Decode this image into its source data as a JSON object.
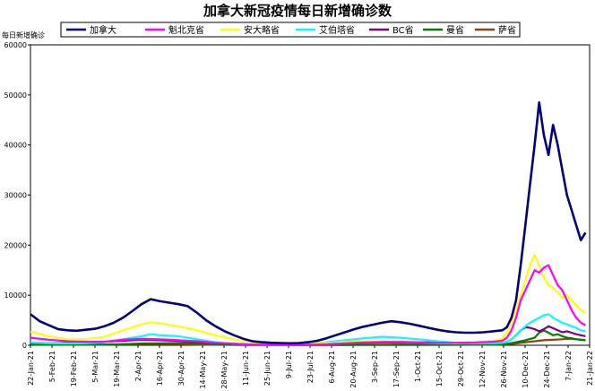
{
  "chart_data": {
    "type": "line",
    "title": "加拿大新冠疫情每日新增确诊数",
    "xlabel": "",
    "ylabel": "每日新增确诊",
    "ylim": [
      0,
      60000
    ],
    "y_ticks": [
      "0",
      "10000",
      "20000",
      "30000",
      "40000",
      "50000",
      "60000"
    ],
    "x_ticks": [
      "22-Jan-21",
      "5-Feb-21",
      "19-Feb-21",
      "5-Mar-21",
      "19-Mar-21",
      "2-Apr-21",
      "16-Apr-21",
      "30-Apr-21",
      "14-May-21",
      "28-May-21",
      "11-Jun-21",
      "25-Jun-21",
      "9-Jul-21",
      "23-Jul-21",
      "6-Aug-21",
      "20-Aug-21",
      "3-Sep-21",
      "17-Sep-21",
      "1-Oct-21",
      "15-Oct-21",
      "29-Oct-21",
      "12-Nov-21",
      "26-Nov-21",
      "10-Dec-21",
      "24-Dec-21",
      "7-Jan-22",
      "21-Jan-22"
    ],
    "grid": false,
    "legend_position": "top",
    "series": [
      {
        "name": "加拿大",
        "color": "#000080",
        "points": [
          [
            0,
            6200
          ],
          [
            4,
            4800
          ],
          [
            8,
            4000
          ],
          [
            12,
            3200
          ],
          [
            16,
            3000
          ],
          [
            20,
            2900
          ],
          [
            24,
            3100
          ],
          [
            28,
            3300
          ],
          [
            32,
            3800
          ],
          [
            36,
            4500
          ],
          [
            40,
            5500
          ],
          [
            44,
            6800
          ],
          [
            48,
            8200
          ],
          [
            52,
            9200
          ],
          [
            56,
            8800
          ],
          [
            60,
            8500
          ],
          [
            64,
            8200
          ],
          [
            68,
            7800
          ],
          [
            72,
            6500
          ],
          [
            76,
            5000
          ],
          [
            80,
            3800
          ],
          [
            84,
            2800
          ],
          [
            88,
            2000
          ],
          [
            92,
            1300
          ],
          [
            96,
            800
          ],
          [
            100,
            600
          ],
          [
            104,
            500
          ],
          [
            108,
            450
          ],
          [
            112,
            400
          ],
          [
            116,
            450
          ],
          [
            120,
            600
          ],
          [
            124,
            900
          ],
          [
            128,
            1400
          ],
          [
            132,
            2000
          ],
          [
            136,
            2600
          ],
          [
            140,
            3200
          ],
          [
            144,
            3700
          ],
          [
            148,
            4100
          ],
          [
            152,
            4500
          ],
          [
            156,
            4800
          ],
          [
            160,
            4600
          ],
          [
            164,
            4300
          ],
          [
            168,
            3900
          ],
          [
            172,
            3500
          ],
          [
            176,
            3100
          ],
          [
            180,
            2800
          ],
          [
            184,
            2600
          ],
          [
            188,
            2500
          ],
          [
            192,
            2500
          ],
          [
            196,
            2600
          ],
          [
            200,
            2800
          ],
          [
            204,
            3000
          ],
          [
            206,
            3600
          ],
          [
            208,
            5500
          ],
          [
            210,
            9000
          ],
          [
            212,
            16000
          ],
          [
            214,
            24000
          ],
          [
            216,
            32000
          ],
          [
            218,
            40000
          ],
          [
            220,
            48500
          ],
          [
            222,
            42000
          ],
          [
            224,
            38000
          ],
          [
            226,
            44000
          ],
          [
            228,
            40000
          ],
          [
            230,
            35000
          ],
          [
            232,
            30000
          ],
          [
            234,
            27000
          ],
          [
            236,
            24000
          ],
          [
            238,
            21000
          ],
          [
            240,
            22500
          ]
        ]
      },
      {
        "name": "魁北克省",
        "color": "#ff00ff",
        "points": [
          [
            0,
            1500
          ],
          [
            8,
            1100
          ],
          [
            16,
            800
          ],
          [
            24,
            700
          ],
          [
            32,
            700
          ],
          [
            40,
            1100
          ],
          [
            48,
            1300
          ],
          [
            56,
            1200
          ],
          [
            64,
            1000
          ],
          [
            72,
            800
          ],
          [
            80,
            500
          ],
          [
            88,
            300
          ],
          [
            96,
            150
          ],
          [
            104,
            100
          ],
          [
            112,
            80
          ],
          [
            120,
            100
          ],
          [
            128,
            200
          ],
          [
            136,
            400
          ],
          [
            144,
            550
          ],
          [
            152,
            650
          ],
          [
            160,
            650
          ],
          [
            168,
            550
          ],
          [
            176,
            500
          ],
          [
            184,
            500
          ],
          [
            192,
            550
          ],
          [
            200,
            700
          ],
          [
            204,
            900
          ],
          [
            206,
            1500
          ],
          [
            208,
            3000
          ],
          [
            210,
            5500
          ],
          [
            212,
            9000
          ],
          [
            214,
            11000
          ],
          [
            216,
            13000
          ],
          [
            218,
            15000
          ],
          [
            220,
            14500
          ],
          [
            222,
            15500
          ],
          [
            224,
            16000
          ],
          [
            226,
            14000
          ],
          [
            228,
            12000
          ],
          [
            230,
            11000
          ],
          [
            232,
            9000
          ],
          [
            234,
            7000
          ],
          [
            236,
            5500
          ],
          [
            238,
            4500
          ],
          [
            240,
            4000
          ]
        ]
      },
      {
        "name": "安大略省",
        "color": "#ffff00",
        "points": [
          [
            0,
            2700
          ],
          [
            8,
            1800
          ],
          [
            16,
            1200
          ],
          [
            24,
            1200
          ],
          [
            32,
            1700
          ],
          [
            40,
            3000
          ],
          [
            48,
            4200
          ],
          [
            52,
            4600
          ],
          [
            56,
            4400
          ],
          [
            64,
            3800
          ],
          [
            72,
            3000
          ],
          [
            80,
            2000
          ],
          [
            88,
            1200
          ],
          [
            96,
            600
          ],
          [
            104,
            300
          ],
          [
            112,
            200
          ],
          [
            120,
            200
          ],
          [
            128,
            450
          ],
          [
            136,
            650
          ],
          [
            144,
            750
          ],
          [
            152,
            700
          ],
          [
            160,
            650
          ],
          [
            168,
            550
          ],
          [
            176,
            450
          ],
          [
            184,
            400
          ],
          [
            192,
            500
          ],
          [
            200,
            900
          ],
          [
            204,
            1300
          ],
          [
            206,
            2500
          ],
          [
            208,
            4500
          ],
          [
            210,
            7000
          ],
          [
            212,
            10000
          ],
          [
            214,
            13000
          ],
          [
            216,
            16000
          ],
          [
            218,
            18000
          ],
          [
            220,
            16000
          ],
          [
            222,
            13500
          ],
          [
            224,
            12000
          ],
          [
            226,
            11500
          ],
          [
            228,
            10500
          ],
          [
            230,
            9500
          ],
          [
            232,
            10000
          ],
          [
            234,
            9000
          ],
          [
            236,
            8000
          ],
          [
            238,
            7000
          ],
          [
            240,
            6500
          ]
        ]
      },
      {
        "name": "艾伯塔省",
        "color": "#00ffff",
        "points": [
          [
            0,
            600
          ],
          [
            8,
            400
          ],
          [
            16,
            350
          ],
          [
            24,
            400
          ],
          [
            32,
            600
          ],
          [
            40,
            1200
          ],
          [
            48,
            1800
          ],
          [
            52,
            2200
          ],
          [
            56,
            2000
          ],
          [
            64,
            1800
          ],
          [
            72,
            1200
          ],
          [
            80,
            600
          ],
          [
            88,
            300
          ],
          [
            96,
            150
          ],
          [
            104,
            50
          ],
          [
            112,
            50
          ],
          [
            120,
            200
          ],
          [
            128,
            600
          ],
          [
            136,
            1000
          ],
          [
            144,
            1400
          ],
          [
            152,
            1700
          ],
          [
            160,
            1500
          ],
          [
            168,
            1200
          ],
          [
            176,
            800
          ],
          [
            184,
            500
          ],
          [
            192,
            400
          ],
          [
            200,
            400
          ],
          [
            204,
            500
          ],
          [
            206,
            700
          ],
          [
            208,
            1200
          ],
          [
            210,
            2000
          ],
          [
            212,
            3000
          ],
          [
            214,
            3800
          ],
          [
            216,
            4500
          ],
          [
            218,
            5000
          ],
          [
            220,
            5500
          ],
          [
            222,
            6000
          ],
          [
            224,
            6200
          ],
          [
            226,
            5500
          ],
          [
            228,
            5000
          ],
          [
            230,
            4500
          ],
          [
            232,
            4200
          ],
          [
            234,
            3800
          ],
          [
            236,
            3500
          ],
          [
            238,
            3000
          ],
          [
            240,
            2800
          ]
        ]
      },
      {
        "name": "BC省",
        "color": "#800080",
        "points": [
          [
            0,
            500
          ],
          [
            8,
            400
          ],
          [
            16,
            450
          ],
          [
            24,
            500
          ],
          [
            32,
            700
          ],
          [
            40,
            900
          ],
          [
            48,
            1100
          ],
          [
            56,
            1000
          ],
          [
            64,
            900
          ],
          [
            72,
            700
          ],
          [
            80,
            500
          ],
          [
            88,
            300
          ],
          [
            96,
            150
          ],
          [
            104,
            50
          ],
          [
            112,
            50
          ],
          [
            120,
            150
          ],
          [
            128,
            450
          ],
          [
            136,
            650
          ],
          [
            144,
            700
          ],
          [
            152,
            700
          ],
          [
            160,
            650
          ],
          [
            168,
            600
          ],
          [
            176,
            550
          ],
          [
            184,
            450
          ],
          [
            192,
            400
          ],
          [
            200,
            400
          ],
          [
            204,
            450
          ],
          [
            206,
            700
          ],
          [
            208,
            1200
          ],
          [
            210,
            2000
          ],
          [
            212,
            3000
          ],
          [
            214,
            3600
          ],
          [
            216,
            3500
          ],
          [
            218,
            3200
          ],
          [
            220,
            2800
          ],
          [
            222,
            3200
          ],
          [
            224,
            3800
          ],
          [
            226,
            3400
          ],
          [
            228,
            3000
          ],
          [
            230,
            2600
          ],
          [
            232,
            2800
          ],
          [
            234,
            2500
          ],
          [
            236,
            2200
          ],
          [
            238,
            2000
          ],
          [
            240,
            1800
          ]
        ]
      },
      {
        "name": "曼省",
        "color": "#008000",
        "points": [
          [
            0,
            200
          ],
          [
            16,
            100
          ],
          [
            32,
            100
          ],
          [
            40,
            200
          ],
          [
            48,
            350
          ],
          [
            56,
            400
          ],
          [
            64,
            450
          ],
          [
            72,
            350
          ],
          [
            80,
            200
          ],
          [
            88,
            100
          ],
          [
            96,
            50
          ],
          [
            120,
            30
          ],
          [
            144,
            50
          ],
          [
            168,
            80
          ],
          [
            192,
            100
          ],
          [
            200,
            150
          ],
          [
            206,
            250
          ],
          [
            210,
            600
          ],
          [
            214,
            1000
          ],
          [
            218,
            1500
          ],
          [
            220,
            2500
          ],
          [
            222,
            3000
          ],
          [
            224,
            2500
          ],
          [
            226,
            2000
          ],
          [
            228,
            2200
          ],
          [
            230,
            1800
          ],
          [
            232,
            1500
          ],
          [
            234,
            1400
          ],
          [
            236,
            1200
          ],
          [
            238,
            1100
          ],
          [
            240,
            1000
          ]
        ]
      },
      {
        "name": "萨省",
        "color": "#8b4513",
        "points": [
          [
            0,
            150
          ],
          [
            16,
            150
          ],
          [
            32,
            150
          ],
          [
            40,
            200
          ],
          [
            48,
            250
          ],
          [
            56,
            250
          ],
          [
            64,
            250
          ],
          [
            72,
            150
          ],
          [
            80,
            100
          ],
          [
            96,
            50
          ],
          [
            120,
            50
          ],
          [
            132,
            200
          ],
          [
            144,
            400
          ],
          [
            152,
            500
          ],
          [
            160,
            450
          ],
          [
            168,
            300
          ],
          [
            184,
            150
          ],
          [
            200,
            100
          ],
          [
            206,
            200
          ],
          [
            210,
            350
          ],
          [
            214,
            600
          ],
          [
            218,
            800
          ],
          [
            222,
            1000
          ],
          [
            226,
            1100
          ],
          [
            230,
            1200
          ],
          [
            234,
            1300
          ],
          [
            238,
            1100
          ],
          [
            240,
            1000
          ]
        ]
      }
    ]
  }
}
